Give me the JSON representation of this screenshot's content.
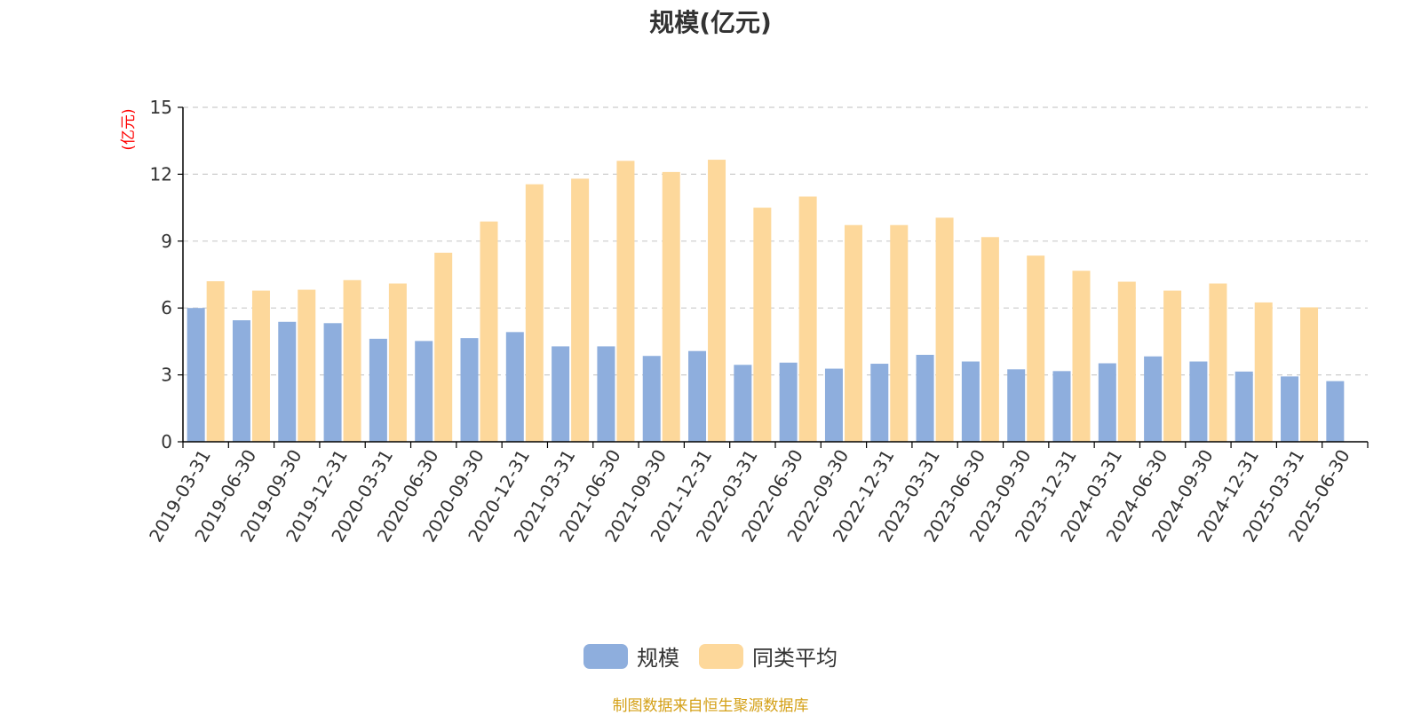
{
  "colors": {
    "series_1": "#8eaedd",
    "series_2": "#fdd89b",
    "unit": "#ff0000",
    "source": "#d4a017",
    "grid": "#cccccc",
    "axis": "#000000"
  },
  "footer": {
    "source": "制图数据来自恒生聚源数据库"
  },
  "chart_data": {
    "type": "bar",
    "title": "规模(亿元)",
    "ylabel": "(亿元)",
    "xlabel": "",
    "ylim": [
      0,
      15
    ],
    "yticks": [
      0,
      3,
      6,
      9,
      12,
      15
    ],
    "grid": true,
    "legend_position": "bottom",
    "categories": [
      "2019-03-31",
      "2019-06-30",
      "2019-09-30",
      "2019-12-31",
      "2020-03-31",
      "2020-06-30",
      "2020-09-30",
      "2020-12-31",
      "2021-03-31",
      "2021-06-30",
      "2021-09-30",
      "2021-12-31",
      "2022-03-31",
      "2022-06-30",
      "2022-09-30",
      "2022-12-31",
      "2023-03-31",
      "2023-06-30",
      "2023-09-30",
      "2023-12-31",
      "2024-03-31",
      "2024-06-30",
      "2024-09-30",
      "2024-12-31",
      "2025-03-31",
      "2025-06-30"
    ],
    "series": [
      {
        "name": "规模",
        "values": [
          6.0,
          5.45,
          5.38,
          5.32,
          4.62,
          4.52,
          4.65,
          4.92,
          4.28,
          4.28,
          3.85,
          4.07,
          3.45,
          3.55,
          3.28,
          3.5,
          3.9,
          3.6,
          3.25,
          3.17,
          3.52,
          3.83,
          3.6,
          3.15,
          2.93,
          2.72
        ]
      },
      {
        "name": "同类平均",
        "values": [
          7.2,
          6.78,
          6.82,
          7.25,
          7.1,
          8.48,
          9.88,
          11.55,
          11.8,
          12.6,
          12.1,
          12.65,
          10.5,
          11.0,
          9.72,
          9.72,
          10.05,
          9.18,
          8.35,
          7.67,
          7.18,
          6.78,
          7.1,
          6.25,
          6.03,
          null
        ]
      }
    ]
  }
}
